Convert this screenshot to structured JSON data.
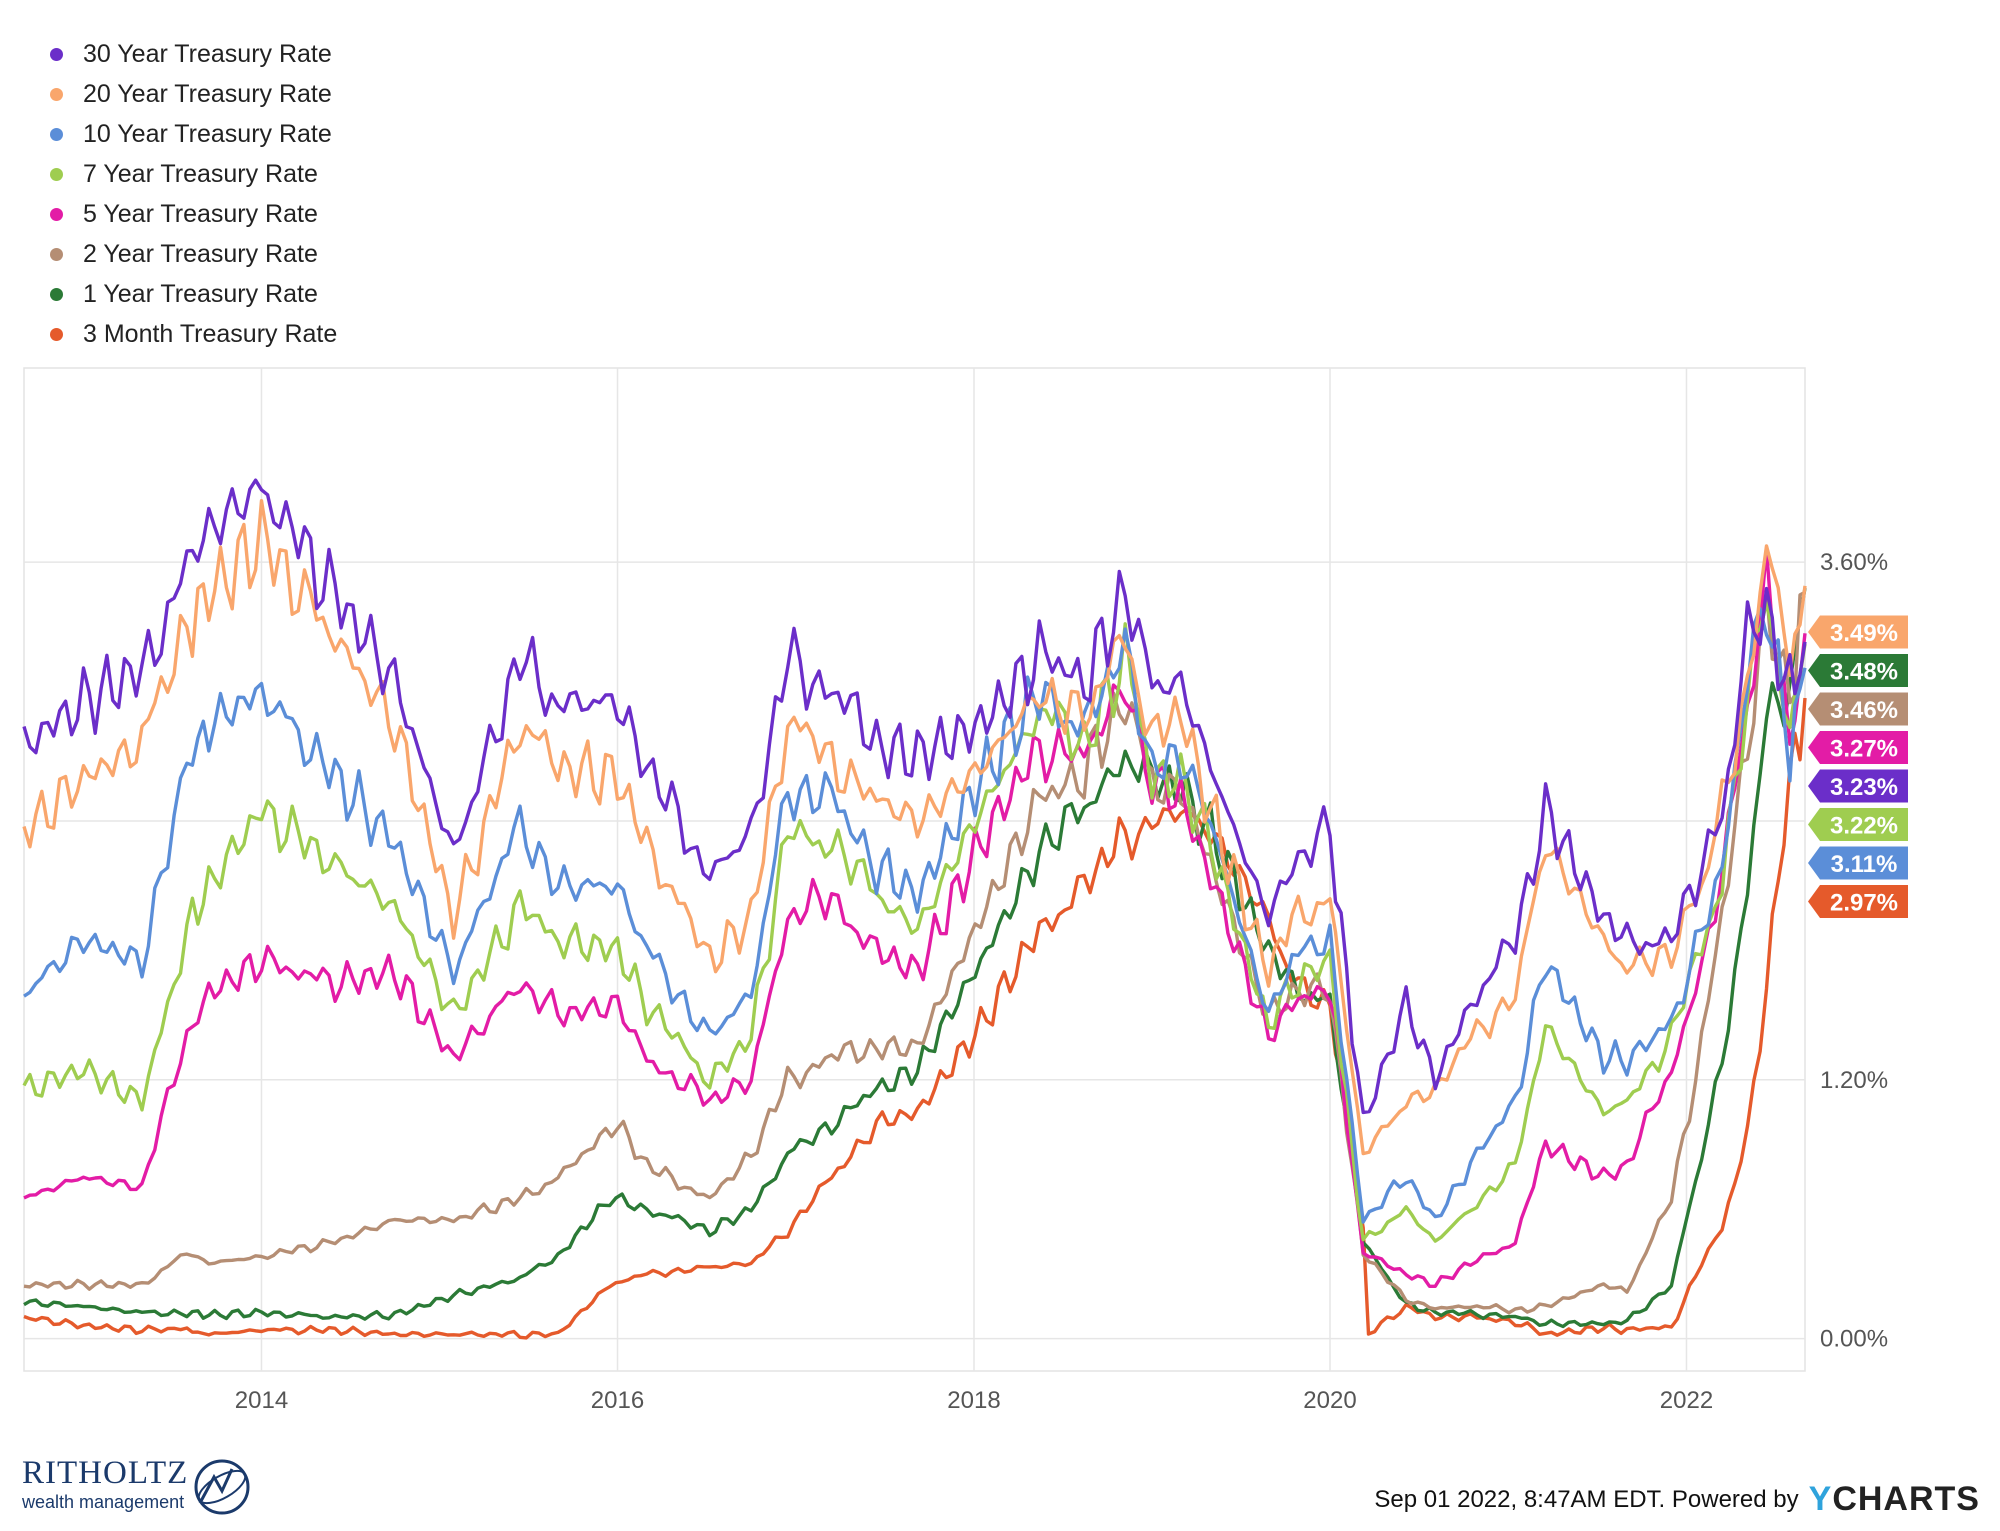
{
  "legend": [
    {
      "label": "30 Year Treasury Rate",
      "color": "#6b2ec9"
    },
    {
      "label": "20 Year Treasury Rate",
      "color": "#f9a66c"
    },
    {
      "label": "10 Year Treasury Rate",
      "color": "#5b8ed8"
    },
    {
      "label": "7 Year Treasury Rate",
      "color": "#9fcd50"
    },
    {
      "label": "5 Year Treasury Rate",
      "color": "#e31ca6"
    },
    {
      "label": "2 Year Treasury Rate",
      "color": "#b58e74"
    },
    {
      "label": "1 Year Treasury Rate",
      "color": "#2b7a36"
    },
    {
      "label": "3 Month Treasury Rate",
      "color": "#e55a2b"
    }
  ],
  "footer": {
    "logo_word": "RITHOLTZ",
    "logo_sub": "wealth management",
    "credit": "Sep 01 2022, 8:47AM EDT. Powered by",
    "brand_y": "Y",
    "brand_rest": "CHARTS"
  },
  "chart_data": {
    "type": "line",
    "x_tick_labels": [
      "2014",
      "2016",
      "2018",
      "2020",
      "2022"
    ],
    "y_tick_labels": [
      "0.00%",
      "1.20%",
      "3.60%"
    ],
    "ylim": [
      -0.15,
      4.5
    ],
    "xlim": [
      "2012-09-01",
      "2022-09-01"
    ],
    "grid": true,
    "legend_position": "top-left",
    "series": [
      {
        "name": "30 Year Treasury Rate",
        "end_label": "3.23%",
        "color": "#6b2ec9",
        "x": [
          "2012-09-01",
          "2013-01-01",
          "2013-05-01",
          "2013-08-01",
          "2013-09-15",
          "2014-01-01",
          "2014-06-01",
          "2014-10-01",
          "2015-01-30",
          "2015-06-15",
          "2015-09-01",
          "2016-01-01",
          "2016-03-01",
          "2016-07-08",
          "2016-10-01",
          "2016-12-15",
          "2017-03-15",
          "2017-06-15",
          "2017-09-07",
          "2018-01-15",
          "2018-05-15",
          "2018-08-15",
          "2018-11-07",
          "2019-01-01",
          "2019-03-01",
          "2019-05-01",
          "2019-08-28",
          "2019-10-15",
          "2020-01-01",
          "2020-03-09",
          "2020-06-05",
          "2020-08-04",
          "2020-10-15",
          "2021-01-15",
          "2021-03-18",
          "2021-07-15",
          "2021-09-01",
          "2021-12-01",
          "2022-02-01",
          "2022-03-15",
          "2022-05-06",
          "2022-06-14",
          "2022-08-01",
          "2022-09-01"
        ],
        "values": [
          2.75,
          2.95,
          3.1,
          3.6,
          3.75,
          3.95,
          3.45,
          3.05,
          2.25,
          3.15,
          2.95,
          2.95,
          2.65,
          2.15,
          2.35,
          3.15,
          3.0,
          2.75,
          2.7,
          2.85,
          3.15,
          3.05,
          3.45,
          3.0,
          3.05,
          2.65,
          1.95,
          2.2,
          2.35,
          1.0,
          1.55,
          1.2,
          1.55,
          1.85,
          2.45,
          1.95,
          1.85,
          1.85,
          2.2,
          2.45,
          3.25,
          3.35,
          3.0,
          3.23
        ]
      },
      {
        "name": "20 Year Treasury Rate",
        "end_label": "3.49%",
        "color": "#f9a66c",
        "x": [
          "2012-09-01",
          "2013-01-01",
          "2013-05-01",
          "2013-08-01",
          "2013-09-15",
          "2014-01-01",
          "2014-06-01",
          "2014-10-01",
          "2015-01-30",
          "2015-06-15",
          "2015-09-01",
          "2016-01-01",
          "2016-03-01",
          "2016-07-08",
          "2016-10-01",
          "2016-12-15",
          "2017-03-15",
          "2017-06-15",
          "2017-09-07",
          "2018-01-15",
          "2018-05-15",
          "2018-08-15",
          "2018-11-07",
          "2019-01-01",
          "2019-03-01",
          "2019-05-01",
          "2019-08-28",
          "2019-10-15",
          "2020-01-01",
          "2020-03-09",
          "2020-06-05",
          "2020-08-04",
          "2020-10-15",
          "2021-01-15",
          "2021-03-18",
          "2021-07-15",
          "2021-09-01",
          "2021-12-01",
          "2022-02-01",
          "2022-03-15",
          "2022-05-06",
          "2022-06-14",
          "2022-08-01",
          "2022-09-01"
        ],
        "values": [
          2.35,
          2.6,
          2.75,
          3.3,
          3.45,
          3.7,
          3.25,
          2.85,
          1.95,
          2.85,
          2.65,
          2.6,
          2.3,
          1.75,
          1.95,
          2.85,
          2.7,
          2.5,
          2.4,
          2.65,
          3.0,
          2.85,
          3.3,
          2.8,
          2.9,
          2.45,
          1.7,
          1.95,
          2.05,
          0.85,
          1.1,
          1.15,
          1.4,
          1.6,
          2.3,
          1.85,
          1.7,
          1.8,
          2.1,
          2.45,
          3.05,
          3.7,
          3.15,
          3.49
        ]
      },
      {
        "name": "10 Year Treasury Rate",
        "end_label": "3.11%",
        "color": "#5b8ed8",
        "x": [
          "2012-09-01",
          "2013-01-01",
          "2013-05-01",
          "2013-08-01",
          "2013-09-15",
          "2014-01-01",
          "2014-06-01",
          "2014-10-01",
          "2015-01-30",
          "2015-06-15",
          "2015-09-01",
          "2016-01-01",
          "2016-03-01",
          "2016-07-08",
          "2016-10-01",
          "2016-12-15",
          "2017-03-15",
          "2017-06-15",
          "2017-09-07",
          "2018-01-15",
          "2018-05-15",
          "2018-08-15",
          "2018-11-07",
          "2019-01-01",
          "2019-03-01",
          "2019-05-01",
          "2019-08-28",
          "2019-10-15",
          "2020-01-01",
          "2020-03-09",
          "2020-06-05",
          "2020-08-04",
          "2020-10-15",
          "2021-01-15",
          "2021-03-18",
          "2021-07-15",
          "2021-09-01",
          "2021-12-01",
          "2022-02-01",
          "2022-03-15",
          "2022-05-06",
          "2022-06-14",
          "2022-08-01",
          "2022-09-01"
        ],
        "values": [
          1.6,
          1.85,
          1.75,
          2.65,
          2.85,
          3.0,
          2.6,
          2.3,
          1.7,
          2.4,
          2.1,
          2.1,
          1.8,
          1.4,
          1.6,
          2.55,
          2.5,
          2.2,
          2.05,
          2.6,
          3.0,
          2.85,
          3.2,
          2.65,
          2.7,
          2.4,
          1.5,
          1.75,
          1.85,
          0.55,
          0.75,
          0.55,
          0.8,
          1.1,
          1.75,
          1.3,
          1.3,
          1.45,
          1.9,
          2.15,
          3.05,
          3.45,
          2.7,
          3.11
        ]
      },
      {
        "name": "7 Year Treasury Rate",
        "end_label": "3.22%",
        "color": "#9fcd50",
        "x": [
          "2012-09-01",
          "2013-01-01",
          "2013-05-01",
          "2013-08-01",
          "2013-09-15",
          "2014-01-01",
          "2014-06-01",
          "2014-10-01",
          "2015-01-30",
          "2015-06-15",
          "2015-09-01",
          "2016-01-01",
          "2016-03-01",
          "2016-07-08",
          "2016-10-01",
          "2016-12-15",
          "2017-03-15",
          "2017-06-15",
          "2017-09-07",
          "2018-01-15",
          "2018-05-15",
          "2018-08-15",
          "2018-11-07",
          "2019-01-01",
          "2019-03-01",
          "2019-05-01",
          "2019-08-28",
          "2019-10-15",
          "2020-01-01",
          "2020-03-09",
          "2020-06-05",
          "2020-08-04",
          "2020-10-15",
          "2021-01-15",
          "2021-03-18",
          "2021-07-15",
          "2021-09-01",
          "2021-12-01",
          "2022-02-01",
          "2022-03-15",
          "2022-05-06",
          "2022-06-14",
          "2022-08-01",
          "2022-09-01"
        ],
        "values": [
          1.15,
          1.25,
          1.1,
          1.9,
          2.1,
          2.45,
          2.2,
          2.0,
          1.5,
          2.0,
          1.85,
          1.8,
          1.55,
          1.2,
          1.4,
          2.35,
          2.3,
          2.05,
          1.9,
          2.45,
          2.9,
          2.75,
          3.15,
          2.6,
          2.6,
          2.3,
          1.45,
          1.65,
          1.75,
          0.45,
          0.6,
          0.45,
          0.6,
          0.8,
          1.45,
          1.05,
          1.1,
          1.4,
          1.85,
          2.15,
          3.0,
          3.4,
          2.8,
          3.22
        ]
      },
      {
        "name": "5 Year Treasury Rate",
        "end_label": "3.27%",
        "color": "#e31ca6",
        "x": [
          "2012-09-01",
          "2013-01-01",
          "2013-05-01",
          "2013-08-01",
          "2013-09-15",
          "2014-01-01",
          "2014-06-01",
          "2014-10-01",
          "2015-01-30",
          "2015-06-15",
          "2015-09-01",
          "2016-01-01",
          "2016-03-01",
          "2016-07-08",
          "2016-10-01",
          "2016-12-15",
          "2017-03-15",
          "2017-06-15",
          "2017-09-07",
          "2018-01-15",
          "2018-05-15",
          "2018-08-15",
          "2018-11-07",
          "2019-01-01",
          "2019-03-01",
          "2019-05-01",
          "2019-08-28",
          "2019-10-15",
          "2020-01-01",
          "2020-03-09",
          "2020-06-05",
          "2020-08-04",
          "2020-10-15",
          "2021-01-15",
          "2021-03-18",
          "2021-07-15",
          "2021-09-01",
          "2021-12-01",
          "2022-02-01",
          "2022-03-15",
          "2022-05-06",
          "2022-06-14",
          "2022-08-01",
          "2022-09-01"
        ],
        "values": [
          0.65,
          0.75,
          0.7,
          1.4,
          1.6,
          1.75,
          1.65,
          1.7,
          1.3,
          1.65,
          1.5,
          1.55,
          1.3,
          1.1,
          1.2,
          1.95,
          2.05,
          1.8,
          1.7,
          2.3,
          2.75,
          2.7,
          3.05,
          2.6,
          2.5,
          2.15,
          1.4,
          1.55,
          1.65,
          0.4,
          0.3,
          0.25,
          0.35,
          0.45,
          0.9,
          0.75,
          0.8,
          1.25,
          1.7,
          2.15,
          2.95,
          3.55,
          2.75,
          3.27
        ]
      },
      {
        "name": "2 Year Treasury Rate",
        "end_label": "3.46%",
        "color": "#b58e74",
        "x": [
          "2012-09-01",
          "2013-01-01",
          "2013-05-01",
          "2013-08-01",
          "2013-09-15",
          "2014-01-01",
          "2014-06-01",
          "2014-10-01",
          "2015-01-30",
          "2015-06-15",
          "2015-09-01",
          "2016-01-01",
          "2016-03-01",
          "2016-07-08",
          "2016-10-01",
          "2016-12-15",
          "2017-03-15",
          "2017-06-15",
          "2017-09-07",
          "2018-01-15",
          "2018-05-15",
          "2018-08-15",
          "2018-11-07",
          "2019-01-01",
          "2019-03-01",
          "2019-05-01",
          "2019-08-28",
          "2019-10-15",
          "2020-01-01",
          "2020-03-09",
          "2020-06-05",
          "2020-08-04",
          "2020-10-15",
          "2021-01-15",
          "2021-03-18",
          "2021-07-15",
          "2021-09-01",
          "2021-12-01",
          "2022-02-01",
          "2022-03-15",
          "2022-05-06",
          "2022-06-14",
          "2022-08-01",
          "2022-09-01"
        ],
        "values": [
          0.25,
          0.25,
          0.25,
          0.4,
          0.35,
          0.38,
          0.45,
          0.55,
          0.55,
          0.65,
          0.75,
          1.0,
          0.8,
          0.65,
          0.85,
          1.2,
          1.3,
          1.35,
          1.35,
          1.95,
          2.5,
          2.65,
          2.95,
          2.55,
          2.55,
          2.2,
          1.5,
          1.6,
          1.6,
          0.4,
          0.18,
          0.14,
          0.15,
          0.13,
          0.15,
          0.25,
          0.22,
          0.65,
          1.35,
          2.0,
          2.7,
          3.4,
          2.95,
          3.46
        ]
      },
      {
        "name": "1 Year Treasury Rate",
        "end_label": "3.48%",
        "color": "#2b7a36",
        "x": [
          "2012-09-01",
          "2013-01-01",
          "2013-05-01",
          "2013-08-01",
          "2013-09-15",
          "2014-01-01",
          "2014-06-01",
          "2014-10-01",
          "2015-01-30",
          "2015-06-15",
          "2015-09-01",
          "2015-12-16",
          "2016-03-01",
          "2016-07-08",
          "2016-10-01",
          "2016-12-15",
          "2017-03-15",
          "2017-06-15",
          "2017-09-07",
          "2018-01-15",
          "2018-05-15",
          "2018-08-15",
          "2018-11-07",
          "2019-01-01",
          "2019-03-01",
          "2019-05-01",
          "2019-08-28",
          "2019-10-15",
          "2020-01-01",
          "2020-03-09",
          "2020-06-05",
          "2020-08-04",
          "2020-10-15",
          "2021-01-15",
          "2021-03-18",
          "2021-07-15",
          "2021-09-01",
          "2021-12-01",
          "2022-02-01",
          "2022-03-15",
          "2022-05-06",
          "2022-06-14",
          "2022-08-01",
          "2022-09-01"
        ],
        "values": [
          0.17,
          0.15,
          0.12,
          0.12,
          0.11,
          0.12,
          0.1,
          0.11,
          0.2,
          0.28,
          0.38,
          0.65,
          0.6,
          0.5,
          0.6,
          0.85,
          1.0,
          1.15,
          1.25,
          1.75,
          2.25,
          2.45,
          2.7,
          2.6,
          2.55,
          2.35,
          1.8,
          1.65,
          1.55,
          0.45,
          0.16,
          0.12,
          0.12,
          0.1,
          0.07,
          0.07,
          0.08,
          0.25,
          0.85,
          1.3,
          2.1,
          2.9,
          3.0,
          3.48
        ]
      },
      {
        "name": "3 Month Treasury Rate",
        "end_label": "2.97%",
        "color": "#e55a2b",
        "x": [
          "2012-09-01",
          "2013-01-01",
          "2013-05-01",
          "2013-08-01",
          "2013-09-15",
          "2014-01-01",
          "2014-06-01",
          "2014-10-01",
          "2015-01-30",
          "2015-06-15",
          "2015-09-01",
          "2015-12-16",
          "2016-03-01",
          "2016-07-08",
          "2016-10-01",
          "2016-12-15",
          "2017-03-15",
          "2017-06-15",
          "2017-09-07",
          "2018-01-15",
          "2018-05-15",
          "2018-08-15",
          "2018-11-07",
          "2019-01-01",
          "2019-03-01",
          "2019-05-01",
          "2019-08-28",
          "2019-10-15",
          "2020-01-01",
          "2020-03-09",
          "2020-03-20",
          "2020-06-05",
          "2020-08-04",
          "2020-10-15",
          "2021-01-15",
          "2021-03-18",
          "2021-07-15",
          "2021-09-01",
          "2021-12-01",
          "2022-02-01",
          "2022-03-15",
          "2022-05-06",
          "2022-06-14",
          "2022-08-01",
          "2022-09-01"
        ],
        "values": [
          0.1,
          0.06,
          0.04,
          0.04,
          0.02,
          0.04,
          0.04,
          0.02,
          0.02,
          0.02,
          0.02,
          0.25,
          0.3,
          0.33,
          0.35,
          0.5,
          0.75,
          1.0,
          1.05,
          1.45,
          1.9,
          2.1,
          2.35,
          2.4,
          2.45,
          2.35,
          1.95,
          1.65,
          1.55,
          0.5,
          0.02,
          0.15,
          0.1,
          0.1,
          0.08,
          0.02,
          0.05,
          0.04,
          0.05,
          0.35,
          0.5,
          0.95,
          1.65,
          2.6,
          2.97
        ]
      }
    ]
  }
}
